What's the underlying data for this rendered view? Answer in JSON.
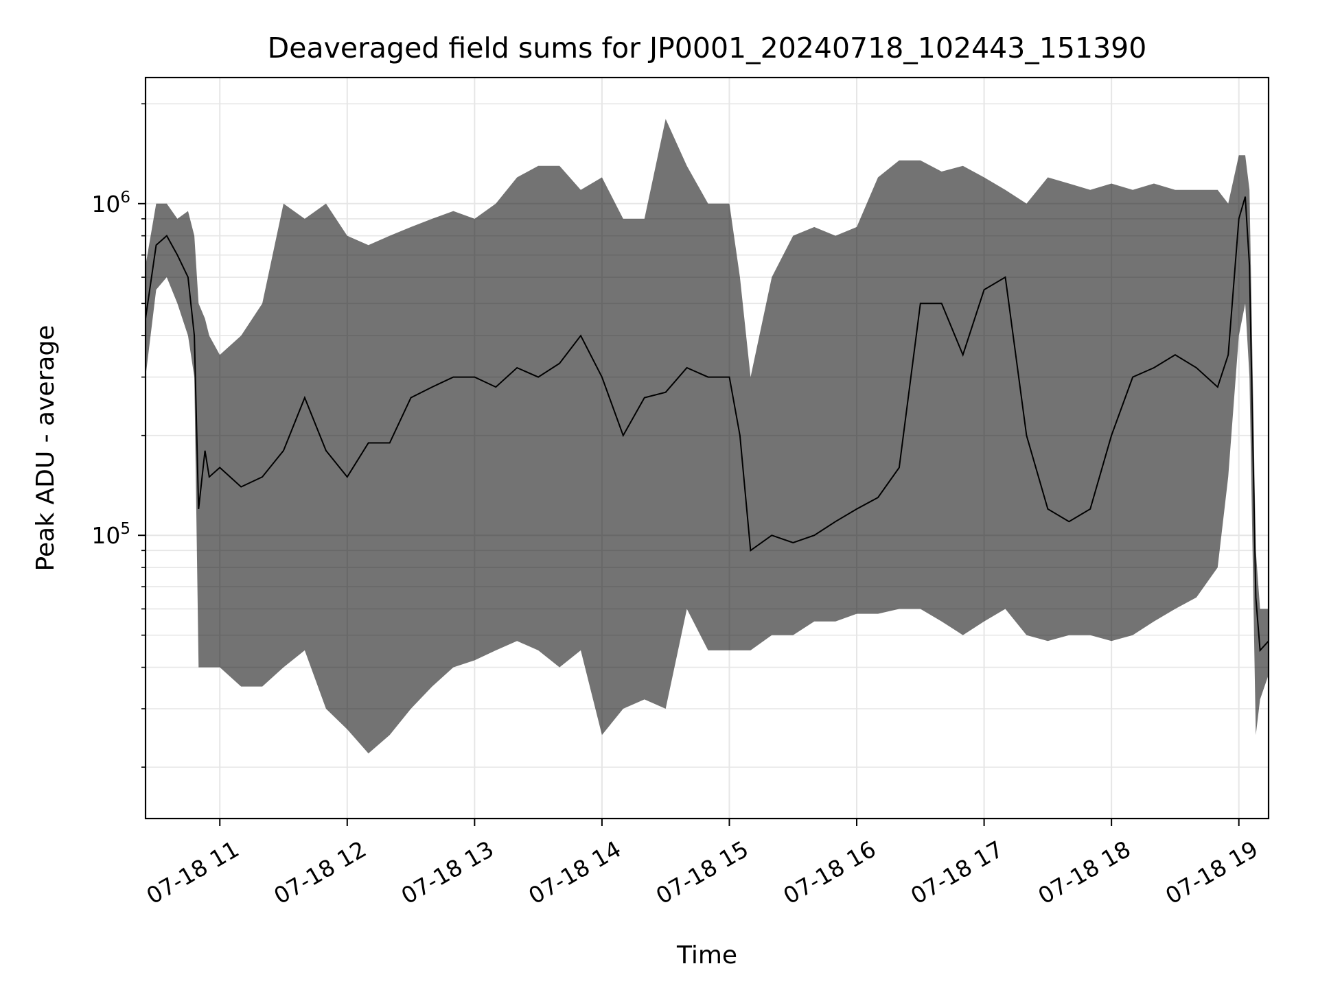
{
  "chart_data": {
    "type": "line",
    "title": "Deaveraged field sums for JP0001_20240718_102443_151390",
    "xlabel": "Time",
    "ylabel": "Peak ADU - average",
    "yscale": "log",
    "grid": true,
    "legend": "none",
    "xlim": [
      "2024-07-18 10:25",
      "2024-07-18 19:14"
    ],
    "ylim": [
      14000,
      2400000
    ],
    "x_ticks": [
      {
        "value": "2024-07-18 11:00",
        "label": "07-18 11"
      },
      {
        "value": "2024-07-18 12:00",
        "label": "07-18 12"
      },
      {
        "value": "2024-07-18 13:00",
        "label": "07-18 13"
      },
      {
        "value": "2024-07-18 14:00",
        "label": "07-18 14"
      },
      {
        "value": "2024-07-18 15:00",
        "label": "07-18 15"
      },
      {
        "value": "2024-07-18 16:00",
        "label": "07-18 16"
      },
      {
        "value": "2024-07-18 17:00",
        "label": "07-18 17"
      },
      {
        "value": "2024-07-18 18:00",
        "label": "07-18 18"
      },
      {
        "value": "2024-07-18 19:00",
        "label": "07-18 19"
      }
    ],
    "y_ticks": [
      {
        "value": 100000,
        "base": "10",
        "exp": "5"
      },
      {
        "value": 1000000,
        "base": "10",
        "exp": "6"
      }
    ],
    "colors": {
      "line": "#000000",
      "grid": "#e6e6e6",
      "axes": "#000000"
    },
    "series": [
      {
        "x": [
          "2024-07-18 10:25",
          "2024-07-18 10:30",
          "2024-07-18 10:35",
          "2024-07-18 10:40",
          "2024-07-18 10:45",
          "2024-07-18 10:48",
          "2024-07-18 10:50",
          "2024-07-18 10:53",
          "2024-07-18 10:55",
          "2024-07-18 11:00",
          "2024-07-18 11:10",
          "2024-07-18 11:20",
          "2024-07-18 11:30",
          "2024-07-18 11:40",
          "2024-07-18 11:50",
          "2024-07-18 12:00",
          "2024-07-18 12:10",
          "2024-07-18 12:20",
          "2024-07-18 12:30",
          "2024-07-18 12:40",
          "2024-07-18 12:50",
          "2024-07-18 13:00",
          "2024-07-18 13:10",
          "2024-07-18 13:20",
          "2024-07-18 13:30",
          "2024-07-18 13:40",
          "2024-07-18 13:50",
          "2024-07-18 14:00",
          "2024-07-18 14:10",
          "2024-07-18 14:20",
          "2024-07-18 14:30",
          "2024-07-18 14:40",
          "2024-07-18 14:50",
          "2024-07-18 15:00",
          "2024-07-18 15:05",
          "2024-07-18 15:10",
          "2024-07-18 15:20",
          "2024-07-18 15:30",
          "2024-07-18 15:40",
          "2024-07-18 15:50",
          "2024-07-18 16:00",
          "2024-07-18 16:10",
          "2024-07-18 16:20",
          "2024-07-18 16:30",
          "2024-07-18 16:40",
          "2024-07-18 16:50",
          "2024-07-18 17:00",
          "2024-07-18 17:10",
          "2024-07-18 17:20",
          "2024-07-18 17:30",
          "2024-07-18 17:40",
          "2024-07-18 17:50",
          "2024-07-18 18:00",
          "2024-07-18 18:10",
          "2024-07-18 18:20",
          "2024-07-18 18:30",
          "2024-07-18 18:40",
          "2024-07-18 18:50",
          "2024-07-18 18:55",
          "2024-07-18 19:00",
          "2024-07-18 19:03",
          "2024-07-18 19:05",
          "2024-07-18 19:08",
          "2024-07-18 19:10",
          "2024-07-18 19:14"
        ],
        "y": [
          450000,
          750000,
          800000,
          700000,
          600000,
          400000,
          120000,
          180000,
          150000,
          160000,
          140000,
          150000,
          180000,
          260000,
          180000,
          150000,
          190000,
          190000,
          260000,
          280000,
          300000,
          300000,
          280000,
          320000,
          300000,
          330000,
          400000,
          300000,
          200000,
          260000,
          270000,
          320000,
          300000,
          300000,
          200000,
          90000,
          100000,
          95000,
          100000,
          110000,
          120000,
          130000,
          160000,
          500000,
          500000,
          350000,
          550000,
          600000,
          200000,
          120000,
          110000,
          120000,
          200000,
          300000,
          320000,
          350000,
          320000,
          280000,
          350000,
          900000,
          1050000,
          650000,
          65000,
          45000,
          48000
        ],
        "y_low": [
          300000,
          550000,
          600000,
          500000,
          400000,
          300000,
          40000,
          40000,
          40000,
          40000,
          35000,
          35000,
          40000,
          45000,
          30000,
          26000,
          22000,
          25000,
          30000,
          35000,
          40000,
          42000,
          45000,
          48000,
          45000,
          40000,
          45000,
          25000,
          30000,
          32000,
          30000,
          60000,
          45000,
          45000,
          45000,
          45000,
          50000,
          50000,
          55000,
          55000,
          58000,
          58000,
          60000,
          60000,
          55000,
          50000,
          55000,
          60000,
          50000,
          48000,
          50000,
          50000,
          48000,
          50000,
          55000,
          60000,
          65000,
          80000,
          150000,
          400000,
          500000,
          300000,
          25000,
          32000,
          38000
        ],
        "y_high": [
          650000,
          1000000,
          1000000,
          900000,
          950000,
          800000,
          500000,
          450000,
          400000,
          350000,
          400000,
          500000,
          1000000,
          900000,
          1000000,
          800000,
          750000,
          800000,
          850000,
          900000,
          950000,
          900000,
          1000000,
          1200000,
          1300000,
          1300000,
          1100000,
          1200000,
          900000,
          900000,
          1800000,
          1300000,
          1000000,
          1000000,
          600000,
          300000,
          600000,
          800000,
          850000,
          800000,
          850000,
          1200000,
          1350000,
          1350000,
          1250000,
          1300000,
          1200000,
          1100000,
          1000000,
          1200000,
          1150000,
          1100000,
          1150000,
          1100000,
          1150000,
          1100000,
          1100000,
          1100000,
          1000000,
          1400000,
          1400000,
          1100000,
          90000,
          60000,
          60000
        ]
      }
    ]
  }
}
